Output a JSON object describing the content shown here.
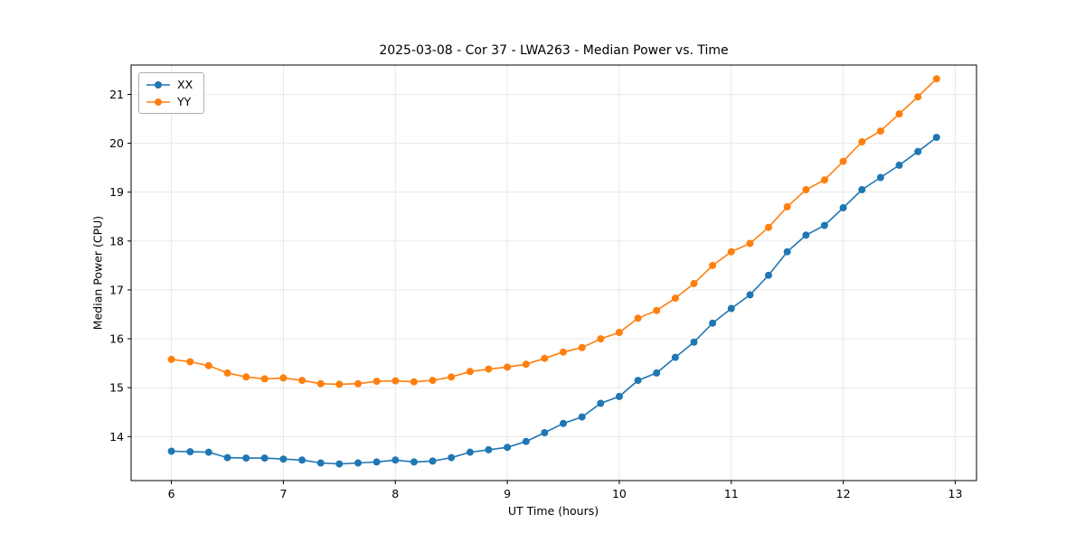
{
  "chart_data": {
    "type": "line",
    "title": "2025-03-08 - Cor 37 - LWA263 - Median Power vs. Time",
    "xlabel": "UT Time (hours)",
    "ylabel": "Median Power (CPU)",
    "grid": true,
    "legend_position": "upper left",
    "xlim": [
      5.64,
      13.19
    ],
    "ylim": [
      13.1,
      21.6
    ],
    "xticks": [
      6,
      7,
      8,
      9,
      10,
      11,
      12,
      13
    ],
    "yticks": [
      14,
      15,
      16,
      17,
      18,
      19,
      20,
      21
    ],
    "x": [
      6.0,
      6.167,
      6.333,
      6.5,
      6.667,
      6.833,
      7.0,
      7.167,
      7.333,
      7.5,
      7.667,
      7.833,
      8.0,
      8.167,
      8.333,
      8.5,
      8.667,
      8.833,
      9.0,
      9.167,
      9.333,
      9.5,
      9.667,
      9.833,
      10.0,
      10.167,
      10.333,
      10.5,
      10.667,
      10.833,
      11.0,
      11.167,
      11.333,
      11.5,
      11.667,
      11.833,
      12.0,
      12.167,
      12.333,
      12.5,
      12.667,
      12.833
    ],
    "series": [
      {
        "name": "XX",
        "color": "#1f77b4",
        "values": [
          13.7,
          13.69,
          13.68,
          13.57,
          13.56,
          13.56,
          13.54,
          13.52,
          13.46,
          13.44,
          13.46,
          13.48,
          13.52,
          13.48,
          13.5,
          13.57,
          13.68,
          13.73,
          13.78,
          13.9,
          14.08,
          14.27,
          14.4,
          14.68,
          14.82,
          15.15,
          15.3,
          15.62,
          15.93,
          16.32,
          16.62,
          16.9,
          17.3,
          17.78,
          18.12,
          18.32,
          18.68,
          19.05,
          19.3,
          19.55,
          19.83,
          20.12
        ]
      },
      {
        "name": "YY",
        "color": "#ff7f0e",
        "values": [
          15.58,
          15.53,
          15.45,
          15.3,
          15.22,
          15.18,
          15.2,
          15.15,
          15.08,
          15.07,
          15.08,
          15.13,
          15.14,
          15.12,
          15.15,
          15.22,
          15.33,
          15.38,
          15.42,
          15.48,
          15.6,
          15.73,
          15.82,
          16.0,
          16.13,
          16.42,
          16.58,
          16.83,
          17.13,
          17.5,
          17.78,
          17.95,
          18.28,
          18.7,
          19.05,
          19.25,
          19.63,
          20.03,
          20.25,
          20.6,
          20.95,
          21.32
        ]
      }
    ]
  }
}
